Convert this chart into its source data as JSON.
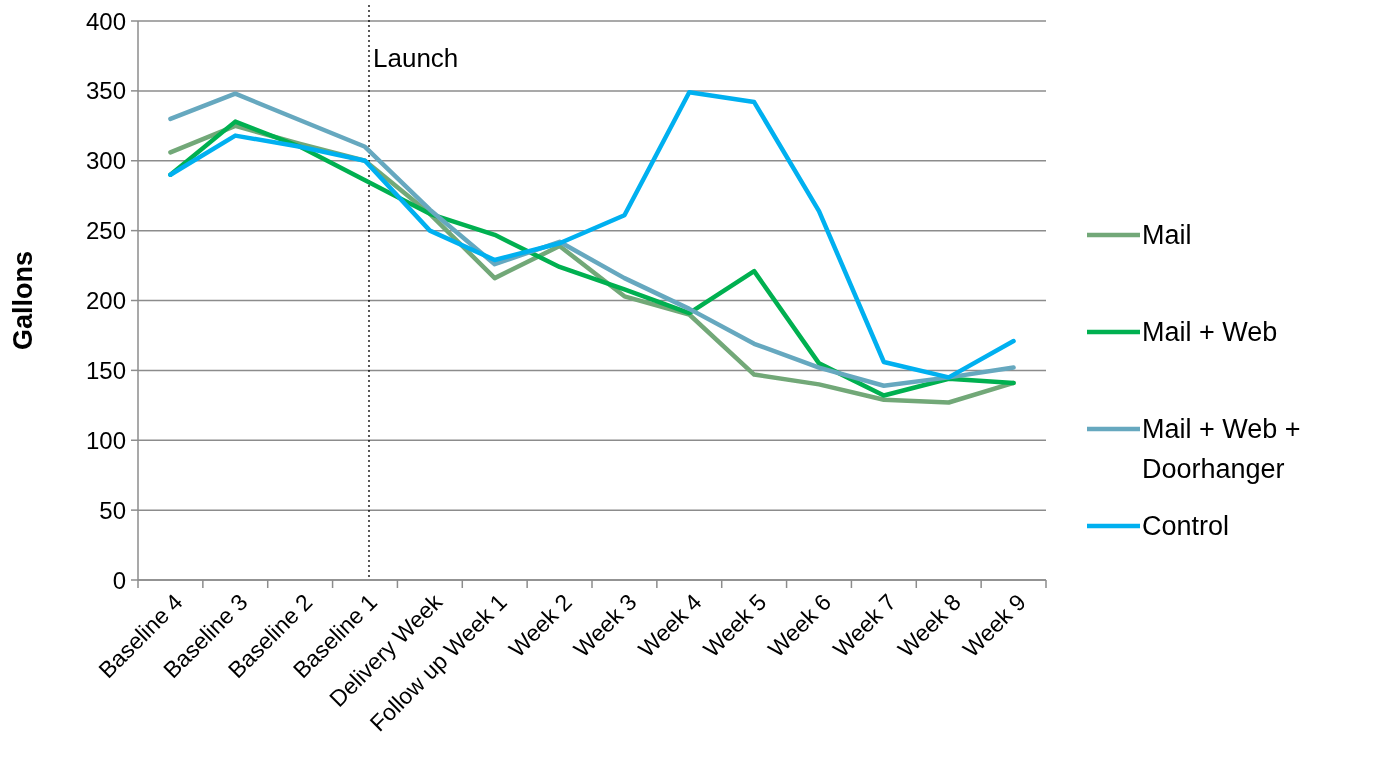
{
  "chart_data": {
    "type": "line",
    "ylabel": "Gallons",
    "categories": [
      "Baseline 4",
      "Baseline 3",
      "Baseline 2",
      "Baseline 1",
      "Delivery Week",
      "Follow up Week 1",
      "Week 2",
      "Week 3",
      "Week 4",
      "Week 5",
      "Week 6",
      "Week 7",
      "Week 8",
      "Week 9"
    ],
    "series": [
      {
        "name": "Mail",
        "color": "#72a878",
        "values": [
          306,
          325,
          312,
          300,
          262,
          216,
          239,
          203,
          190,
          147,
          140,
          129,
          127,
          141
        ]
      },
      {
        "name": "Mail + Web",
        "color": "#00b050",
        "values": [
          290,
          328,
          310,
          286,
          262,
          247,
          224,
          208,
          191,
          221,
          155,
          132,
          144,
          141
        ]
      },
      {
        "name": "Mail + Web + Doorhanger",
        "color": "#66a8bf",
        "values": [
          330,
          348,
          329,
          310,
          265,
          226,
          242,
          216,
          194,
          169,
          152,
          139,
          145,
          152
        ]
      },
      {
        "name": "Control",
        "color": "#00b0f0",
        "values": [
          290,
          318,
          310,
          300,
          250,
          229,
          241,
          261,
          349,
          342,
          264,
          156,
          145,
          171
        ]
      }
    ],
    "ylim": [
      0,
      400
    ],
    "yticks": [
      0,
      50,
      100,
      150,
      200,
      250,
      300,
      350,
      400
    ],
    "grid": "y",
    "legend": "right",
    "ref_lines": [
      {
        "axis": "x",
        "value": "Baseline 1",
        "label": "Launch",
        "line_style": "dotted",
        "color": "#000000"
      }
    ]
  }
}
